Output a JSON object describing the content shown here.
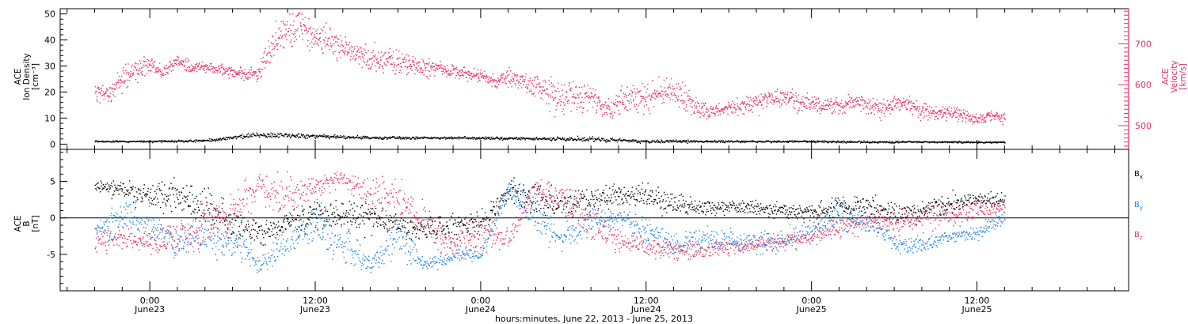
{
  "chart_data": [
    {
      "type": "scatter",
      "panel": "top",
      "ylabel_left": [
        "ACE",
        "Ion Density",
        "[cm⁻³]"
      ],
      "ylabel_right": [
        "ACE",
        "Velocity",
        "[km/s]"
      ],
      "ylim_left": [
        -2,
        52
      ],
      "ylim_right": [
        442,
        786
      ],
      "yticks_left": [
        "0",
        "10",
        "20",
        "30",
        "40",
        "50"
      ],
      "yticks_right": [
        "500",
        "600",
        "700"
      ],
      "colors": {
        "density": "#000000",
        "velocity": "#e8315f",
        "axis_right": "#e8315f"
      },
      "series": [
        {
          "name": "Velocity",
          "axis": "right",
          "color": "#e8315f",
          "x": [
            -4,
            -3,
            -2,
            -1,
            0,
            1,
            2,
            3,
            4,
            5,
            6,
            7,
            8,
            9,
            10,
            11,
            12,
            13,
            14,
            15,
            16,
            17,
            18,
            19,
            20,
            21,
            22,
            23,
            24,
            25,
            26,
            27,
            28,
            29,
            30,
            31,
            32,
            33,
            34,
            35,
            36,
            37,
            38,
            39,
            40,
            41,
            42,
            43,
            44,
            45,
            46,
            47,
            48,
            49,
            50,
            51,
            52,
            53,
            54,
            55,
            56,
            57,
            58,
            59,
            60,
            61,
            62
          ],
          "y": [
            585,
            580,
            620,
            640,
            650,
            630,
            660,
            640,
            645,
            640,
            630,
            625,
            635,
            710,
            730,
            745,
            720,
            700,
            690,
            680,
            670,
            665,
            660,
            650,
            640,
            640,
            635,
            630,
            620,
            610,
            620,
            610,
            590,
            580,
            575,
            570,
            575,
            540,
            560,
            570,
            565,
            580,
            590,
            560,
            540,
            535,
            545,
            545,
            560,
            565,
            570,
            560,
            555,
            545,
            550,
            560,
            550,
            545,
            550,
            555,
            540,
            530,
            535,
            525,
            520,
            525,
            520
          ],
          "spread": [
            20,
            20,
            25,
            30,
            25,
            20,
            15,
            15,
            15,
            15,
            15,
            15,
            20,
            45,
            45,
            40,
            40,
            35,
            30,
            30,
            30,
            30,
            25,
            25,
            20,
            15,
            15,
            15,
            15,
            15,
            20,
            25,
            40,
            40,
            40,
            35,
            30,
            20,
            35,
            35,
            30,
            30,
            30,
            35,
            20,
            15,
            15,
            20,
            25,
            20,
            20,
            20,
            20,
            20,
            20,
            20,
            20,
            20,
            20,
            20,
            20,
            15,
            15,
            15,
            15,
            15,
            15
          ]
        },
        {
          "name": "Ion Density",
          "axis": "left",
          "color": "#000000",
          "x": [
            -4,
            0,
            4,
            8,
            12,
            16,
            20,
            24,
            28,
            32,
            36,
            40,
            44,
            48,
            52,
            56,
            60,
            62
          ],
          "y": [
            1.2,
            1.2,
            1.5,
            3.8,
            3.2,
            2.6,
            2.6,
            2.5,
            2.3,
            2.0,
            1.3,
            1.2,
            1.2,
            1.2,
            1.0,
            1.0,
            0.9,
            0.9
          ],
          "spread": [
            0.3,
            0.3,
            0.5,
            1.0,
            0.8,
            0.6,
            0.5,
            0.5,
            0.5,
            1.0,
            0.6,
            0.4,
            0.4,
            0.4,
            0.4,
            0.3,
            0.3,
            0.3
          ]
        }
      ]
    },
    {
      "type": "scatter",
      "panel": "bottom",
      "ylabel": [
        "ACE",
        "B",
        "[nT]"
      ],
      "ylim": [
        -10,
        9.4
      ],
      "yticks": [
        "-5",
        "0",
        "5"
      ],
      "legend_placement": "right",
      "series": [
        {
          "name": "Bx",
          "label_main": "B",
          "label_sub": "x",
          "color": "#000000",
          "x": [
            -4,
            -2,
            0,
            2,
            4,
            6,
            8,
            10,
            12,
            14,
            16,
            18,
            20,
            22,
            24,
            26,
            28,
            30,
            32,
            34,
            36,
            38,
            40,
            42,
            44,
            46,
            48,
            50,
            52,
            54,
            56,
            58,
            60,
            62
          ],
          "y": [
            4.5,
            4.0,
            3.0,
            3.0,
            1.5,
            -0.5,
            -2.0,
            -0.5,
            0.5,
            0.5,
            0.0,
            -1.0,
            -1.5,
            -1.0,
            -0.5,
            3.5,
            2.5,
            2.0,
            2.5,
            3.0,
            3.0,
            2.0,
            1.5,
            1.5,
            1.5,
            1.0,
            1.0,
            1.5,
            1.5,
            0.5,
            1.0,
            2.0,
            2.5,
            2.5
          ],
          "spread": [
            0.8,
            1.2,
            2.0,
            2.0,
            2.5,
            2.5,
            1.5,
            2.0,
            2.0,
            2.0,
            2.0,
            1.5,
            1.5,
            2.0,
            1.5,
            1.5,
            2.0,
            2.0,
            1.5,
            1.5,
            1.5,
            1.5,
            1.0,
            1.0,
            1.0,
            1.0,
            1.0,
            1.5,
            1.5,
            1.5,
            1.5,
            1.5,
            1.0,
            0.8
          ]
        },
        {
          "name": "By",
          "label_main": "B",
          "label_sub": "y",
          "color": "#1f86e8",
          "x": [
            -4,
            -2,
            0,
            2,
            4,
            6,
            8,
            10,
            12,
            14,
            16,
            18,
            20,
            22,
            24,
            26,
            28,
            30,
            32,
            34,
            36,
            38,
            40,
            42,
            44,
            46,
            48,
            50,
            52,
            54,
            56,
            58,
            60,
            62
          ],
          "y": [
            -1.5,
            0.5,
            -1.0,
            -3.5,
            -2.5,
            -3.0,
            -6.5,
            -3.0,
            -0.5,
            -3.5,
            -6.5,
            -2.5,
            -6.5,
            -5.0,
            -5.0,
            4.0,
            0.5,
            -3.0,
            -0.5,
            0.5,
            -2.0,
            -3.5,
            -3.0,
            -3.0,
            -3.5,
            -3.0,
            -2.0,
            0.5,
            -0.5,
            -3.5,
            -3.5,
            -2.5,
            -2.0,
            0.0
          ],
          "spread": [
            1.5,
            2.0,
            2.5,
            2.0,
            2.5,
            2.5,
            1.0,
            3.0,
            2.5,
            3.0,
            1.0,
            2.5,
            1.0,
            1.0,
            1.0,
            1.0,
            2.5,
            2.0,
            2.0,
            2.0,
            2.0,
            1.5,
            1.5,
            1.5,
            1.5,
            1.5,
            1.5,
            2.0,
            1.5,
            1.0,
            1.0,
            1.0,
            1.0,
            1.0
          ]
        },
        {
          "name": "Bz",
          "label_main": "B",
          "label_sub": "z",
          "color": "#e8315f",
          "x": [
            -4,
            -2,
            0,
            2,
            4,
            6,
            8,
            10,
            12,
            14,
            16,
            18,
            20,
            22,
            24,
            26,
            28,
            30,
            32,
            34,
            36,
            38,
            40,
            42,
            44,
            46,
            48,
            50,
            52,
            54,
            56,
            58,
            60,
            62
          ],
          "y": [
            -3.0,
            -2.5,
            -3.5,
            -2.5,
            -1.0,
            1.0,
            4.5,
            3.0,
            4.5,
            5.5,
            3.0,
            3.0,
            -1.0,
            -3.5,
            -2.0,
            -3.0,
            4.0,
            3.0,
            -1.0,
            -3.0,
            -4.0,
            -4.5,
            -4.5,
            -4.0,
            -3.5,
            -3.0,
            -2.5,
            -1.0,
            -0.5,
            -0.5,
            0.0,
            0.5,
            1.0,
            1.5
          ],
          "spread": [
            1.5,
            1.5,
            1.5,
            2.0,
            3.0,
            3.0,
            2.0,
            3.0,
            1.5,
            1.0,
            2.5,
            2.5,
            2.5,
            1.5,
            2.0,
            1.5,
            1.5,
            2.0,
            2.5,
            1.5,
            1.5,
            1.0,
            1.0,
            1.0,
            1.0,
            1.0,
            1.0,
            1.5,
            1.5,
            1.5,
            1.5,
            1.5,
            1.5,
            1.0
          ]
        }
      ]
    },
    {
      "type": "axis",
      "xlabel": "hours:minutes, June 22, 2013 - June 25, 2013",
      "xlim": [
        -6.5,
        71
      ],
      "ticks": [
        {
          "x": 0,
          "time": "0:00",
          "day": "June23"
        },
        {
          "x": 12,
          "time": "12:00",
          "day": "June23"
        },
        {
          "x": 24,
          "time": "0:00",
          "day": "June24"
        },
        {
          "x": 36,
          "time": "12:00",
          "day": "June24"
        },
        {
          "x": 48,
          "time": "0:00",
          "day": "June25"
        },
        {
          "x": 60,
          "time": "12:00",
          "day": "June25"
        }
      ]
    }
  ]
}
